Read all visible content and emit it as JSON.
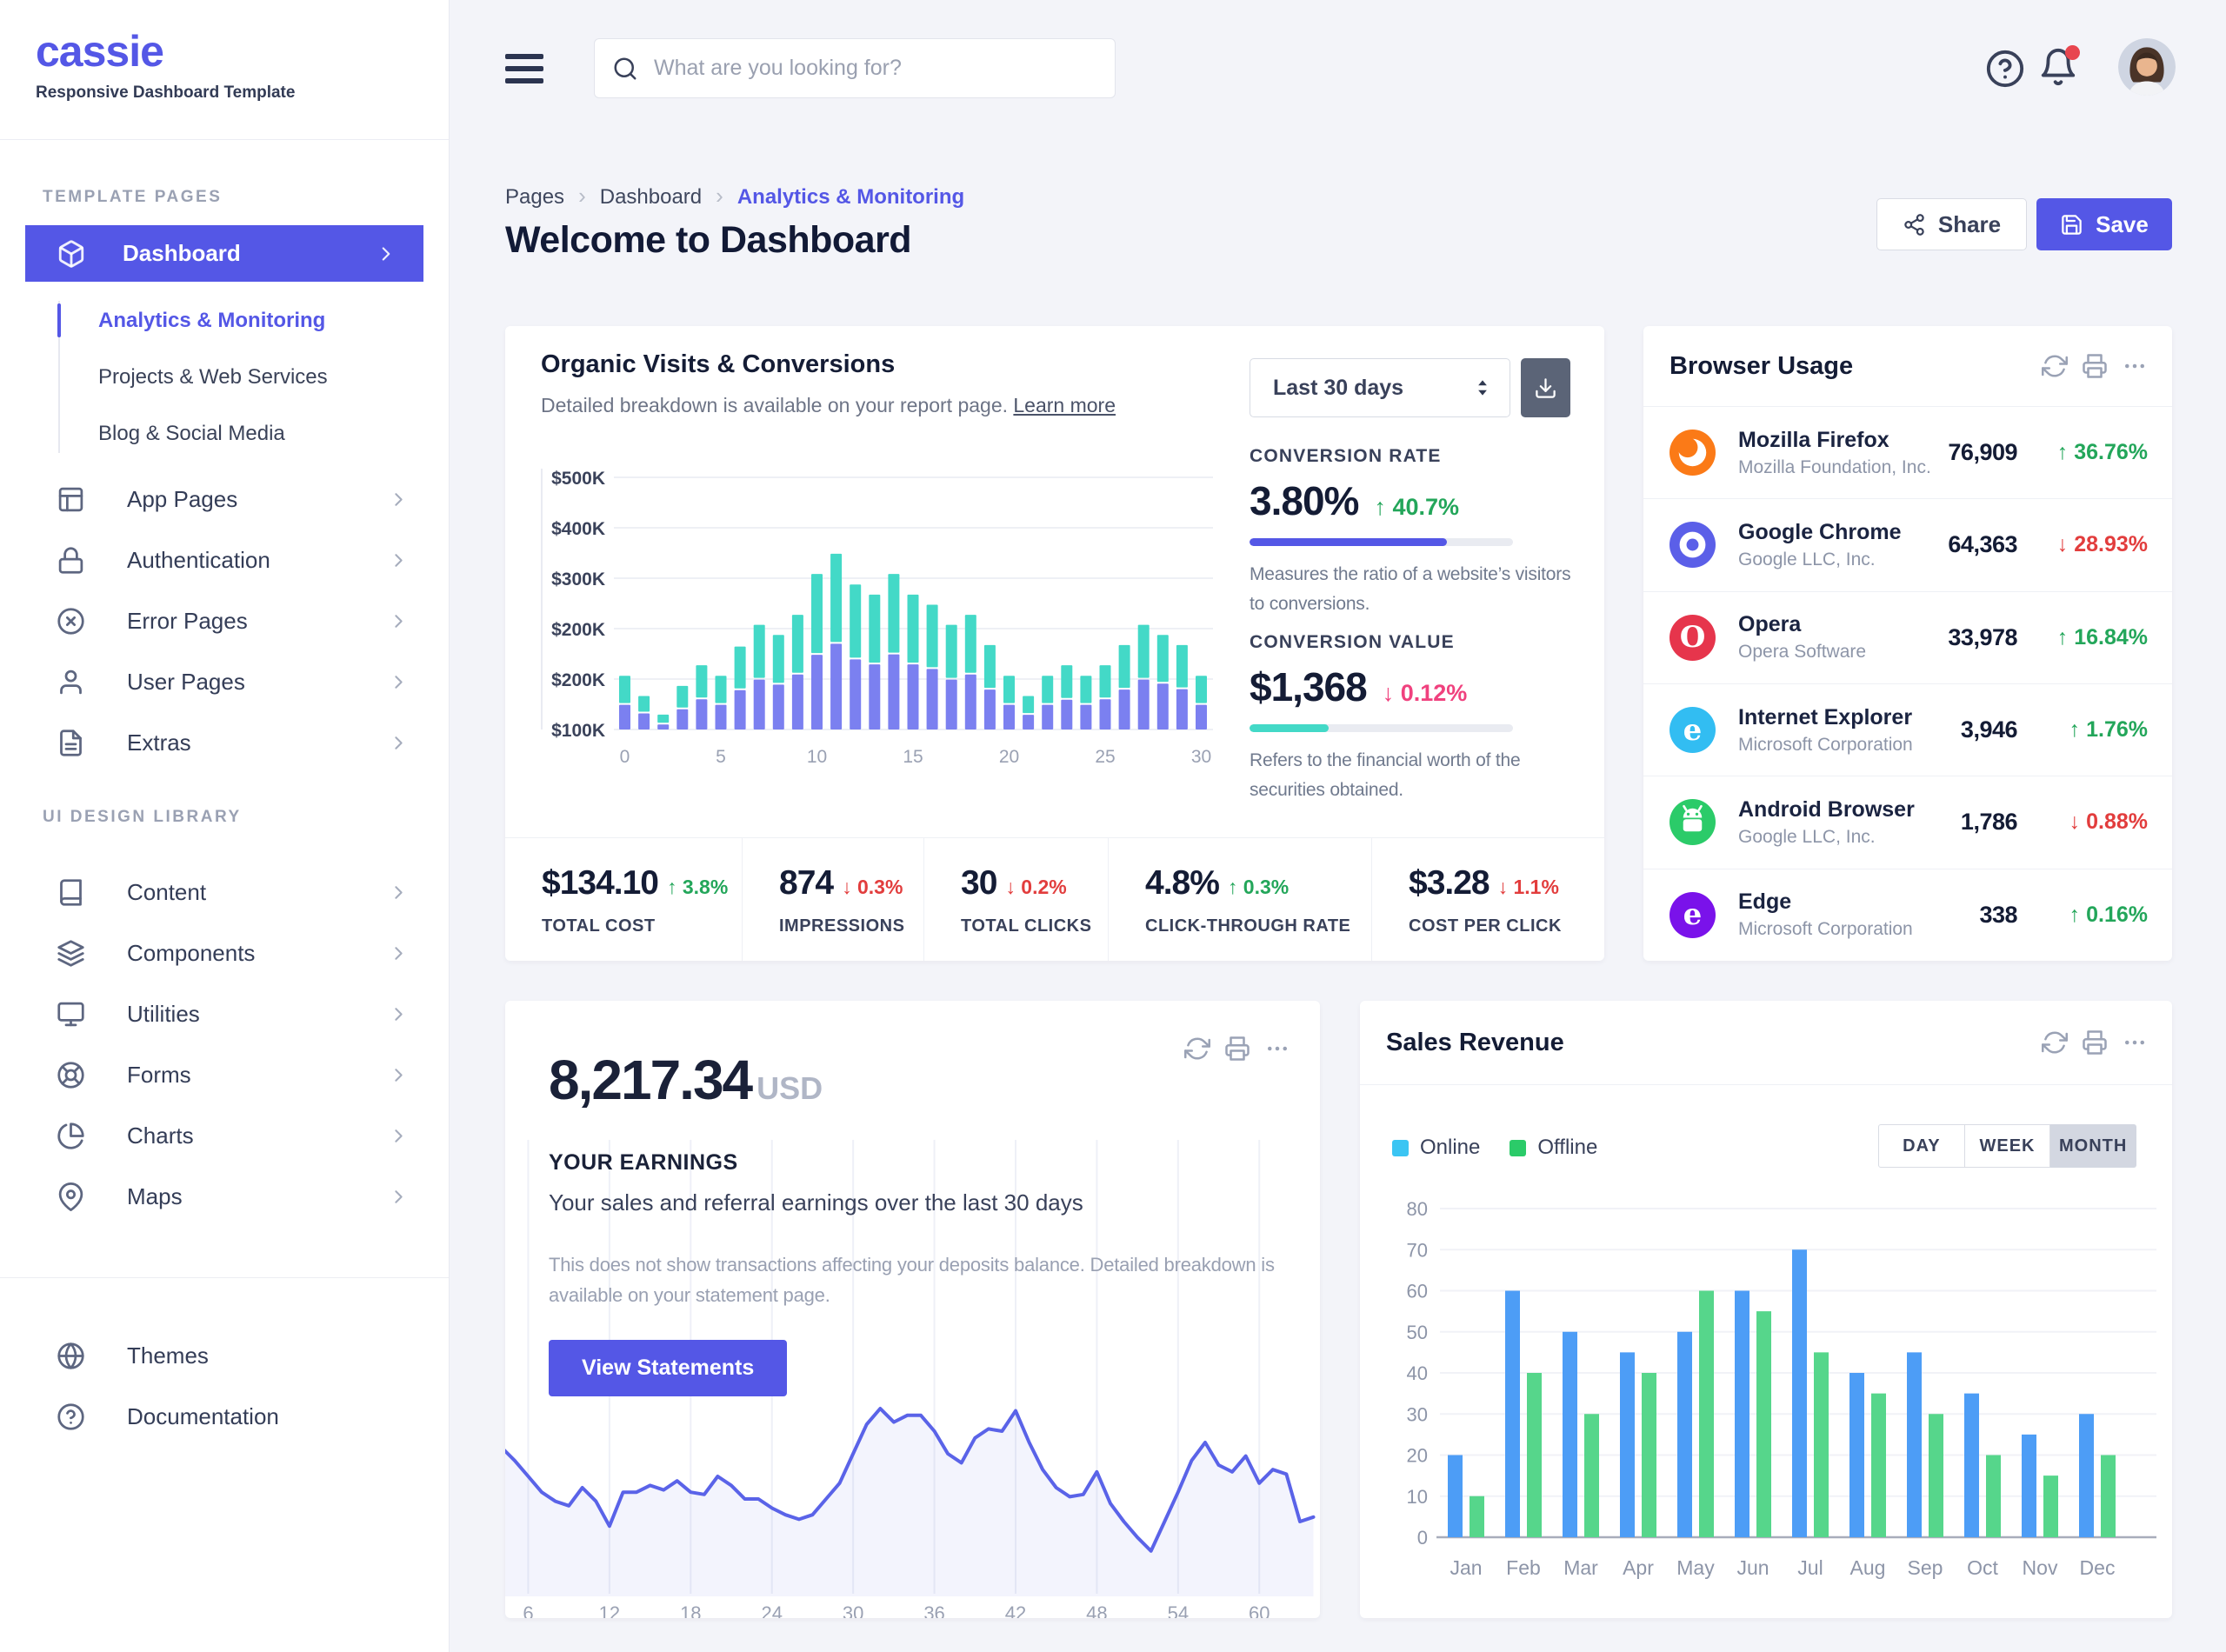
{
  "app": {
    "accent": "#5457e6"
  },
  "sidebar": {
    "logo": "cassie",
    "tagline": "Responsive Dashboard Template",
    "template_section": "Template pages",
    "library_section": "UI design library",
    "dashboard": {
      "label": "Dashboard",
      "icon": "cube"
    },
    "dashboard_children": [
      {
        "label": "Analytics & Monitoring",
        "active": true
      },
      {
        "label": "Projects & Web Services",
        "active": false
      },
      {
        "label": "Blog & Social Media",
        "active": false
      }
    ],
    "template_items": [
      {
        "label": "App Pages",
        "icon": "layout"
      },
      {
        "label": "Authentication",
        "icon": "lock"
      },
      {
        "label": "Error Pages",
        "icon": "x-circle"
      },
      {
        "label": "User Pages",
        "icon": "user"
      },
      {
        "label": "Extras",
        "icon": "file-text"
      }
    ],
    "library_items": [
      {
        "label": "Content",
        "icon": "book"
      },
      {
        "label": "Components",
        "icon": "layers"
      },
      {
        "label": "Utilities",
        "icon": "monitor"
      },
      {
        "label": "Forms",
        "icon": "life-buoy"
      },
      {
        "label": "Charts",
        "icon": "pie-chart"
      },
      {
        "label": "Maps",
        "icon": "map-pin"
      }
    ],
    "footer_items": [
      {
        "label": "Themes",
        "icon": "globe"
      },
      {
        "label": "Documentation",
        "icon": "help-circle"
      }
    ]
  },
  "topbar": {
    "search_placeholder": "What are you looking for?"
  },
  "page": {
    "breadcrumb": [
      "Pages",
      "Dashboard",
      "Analytics & Monitoring"
    ],
    "title": "Welcome to Dashboard",
    "share_label": "Share",
    "save_label": "Save"
  },
  "organic": {
    "title": "Organic Visits & Conversions",
    "subtitle": "Detailed breakdown is available on your report page.",
    "learn_more": "Learn more",
    "range": "Last 30 days",
    "chart_data": {
      "type": "bar",
      "stacked": true,
      "x_ticks": [
        0,
        5,
        10,
        15,
        20,
        25,
        30
      ],
      "y_labels": [
        "$500K",
        "$400K",
        "$300K",
        "$200K",
        "$200K",
        "$100K"
      ],
      "series": [
        {
          "name": "Visits",
          "color": "#7b80f0",
          "values": [
            49,
            32,
            10,
            40,
            60,
            49,
            78,
            99,
            89,
            109,
            148,
            170,
            139,
            129,
            149,
            129,
            120,
            99,
            109,
            79,
            49,
            29,
            49,
            59,
            49,
            60,
            79,
            99,
            91,
            80,
            49
          ]
        },
        {
          "name": "Conversions",
          "color": "#43d9c7",
          "values": [
            54,
            31,
            16,
            43,
            64,
            54,
            83,
            105,
            95,
            115,
            157,
            175,
            145,
            135,
            156,
            135,
            124,
            105,
            115,
            85,
            54,
            34,
            54,
            65,
            54,
            64,
            85,
            105,
            93,
            84,
            54
          ]
        }
      ]
    },
    "conversion_rate": {
      "label": "Conversion rate",
      "value": "3.80%",
      "delta": "40.7%",
      "direction": "up",
      "progress": 0.75,
      "bar_color": "#5457e6",
      "desc": "Measures the ratio of a website’s visitors to conversions."
    },
    "conversion_value": {
      "label": "Conversion value",
      "value": "$1,368",
      "delta": "0.12%",
      "direction": "down",
      "progress": 0.3,
      "bar_color": "#43d9c7",
      "desc": "Refers to the financial worth of the securities obtained."
    },
    "stats": [
      {
        "value": "$134.10",
        "delta": "3.8%",
        "direction": "up",
        "label": "Total Cost"
      },
      {
        "value": "874",
        "delta": "0.3%",
        "direction": "down",
        "label": "Impressions"
      },
      {
        "value": "30",
        "delta": "0.2%",
        "direction": "down",
        "label": "Total Clicks"
      },
      {
        "value": "4.8%",
        "delta": "0.3%",
        "direction": "up",
        "label": "Click-Through Rate"
      },
      {
        "value": "$3.28",
        "delta": "1.1%",
        "direction": "down",
        "label": "Cost Per Click"
      }
    ]
  },
  "browser": {
    "title": "Browser Usage",
    "rows": [
      {
        "name": "Mozilla Firefox",
        "company": "Mozilla Foundation, Inc.",
        "value": "76,909",
        "delta": "36.76%",
        "direction": "up",
        "color": "#fb7a17",
        "glyph": "firefox"
      },
      {
        "name": "Google Chrome",
        "company": "Google LLC, Inc.",
        "value": "64,363",
        "delta": "28.93%",
        "direction": "down",
        "color": "#5b5fe8",
        "glyph": "chrome"
      },
      {
        "name": "Opera",
        "company": "Opera Software",
        "value": "33,978",
        "delta": "16.84%",
        "direction": "up",
        "color": "#e6354c",
        "glyph": "O"
      },
      {
        "name": "Internet Explorer",
        "company": "Microsoft Corporation",
        "value": "3,946",
        "delta": "1.76%",
        "direction": "up",
        "color": "#32bdf2",
        "glyph": "e"
      },
      {
        "name": "Android Browser",
        "company": "Google LLC, Inc.",
        "value": "1,786",
        "delta": "0.88%",
        "direction": "down",
        "color": "#2bcb69",
        "glyph": "android"
      },
      {
        "name": "Edge",
        "company": "Microsoft Corporation",
        "value": "338",
        "delta": "0.16%",
        "direction": "up",
        "color": "#7a12ea",
        "glyph": "e"
      }
    ]
  },
  "earnings": {
    "amount": "8,217.34",
    "currency": "USD",
    "heading": "YOUR EARNINGS",
    "subtitle": "Your sales and referral earnings over the last 30 days",
    "note": "This does not show transactions affecting your deposits balance. Detailed breakdown is available on your statement page.",
    "button": "View Statements",
    "chart_data": {
      "type": "line",
      "color": "#5a63e8",
      "x_start": 4,
      "x_labels": [
        6,
        12,
        18,
        24,
        30,
        36,
        42,
        48,
        54,
        60
      ],
      "values": [
        68,
        62,
        55,
        48,
        44,
        42,
        50,
        44,
        33,
        48,
        48,
        51,
        49,
        53,
        48,
        47,
        55,
        51,
        45,
        45,
        41,
        38,
        36,
        38,
        45,
        52,
        65,
        78,
        85,
        79,
        82,
        82,
        75,
        65,
        61,
        72,
        76,
        75,
        84,
        70,
        58,
        50,
        46,
        47,
        57,
        43,
        35,
        28,
        22,
        35,
        48,
        62,
        70,
        60,
        57,
        64,
        52,
        58,
        56,
        35,
        37
      ]
    }
  },
  "sales": {
    "title": "Sales Revenue",
    "legend": [
      {
        "label": "Online",
        "color": "#3bc5f3"
      },
      {
        "label": "Offline",
        "color": "#2bcb69"
      }
    ],
    "toggles": [
      "Day",
      "Week",
      "Month"
    ],
    "active_toggle": "Month",
    "chart_data": {
      "type": "bar",
      "grouped": true,
      "categories": [
        "Jan",
        "Feb",
        "Mar",
        "Apr",
        "May",
        "Jun",
        "Jul",
        "Aug",
        "Sep",
        "Oct",
        "Nov",
        "Dec"
      ],
      "series": [
        {
          "name": "Online",
          "color": "#4d9df6",
          "values": [
            20,
            60,
            50,
            45,
            50,
            60,
            70,
            40,
            45,
            35,
            25,
            30
          ]
        },
        {
          "name": "Offline",
          "color": "#56d68b",
          "values": [
            10,
            40,
            30,
            40,
            60,
            55,
            45,
            35,
            30,
            20,
            15,
            20
          ]
        }
      ],
      "ylim": [
        0,
        80
      ],
      "y_step": 10
    }
  }
}
